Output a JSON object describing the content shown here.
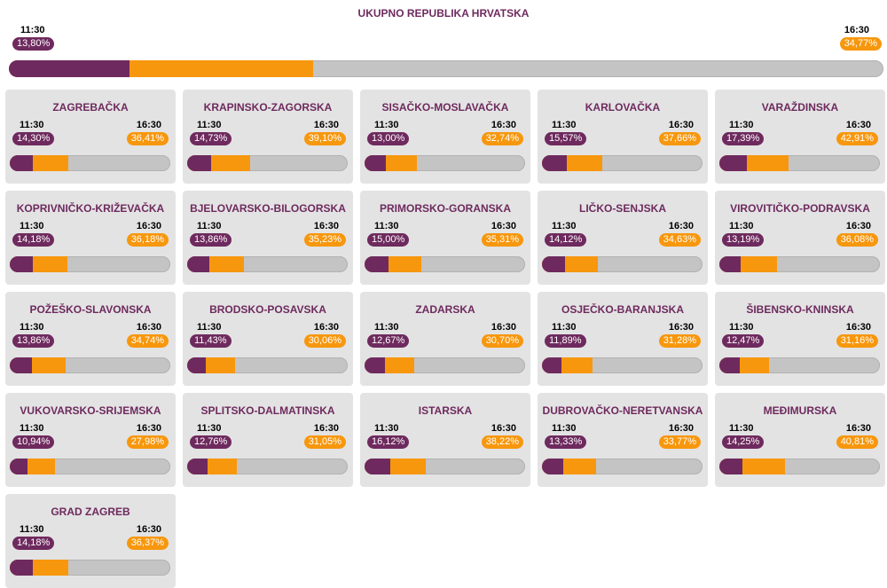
{
  "chart_data": {
    "type": "bar",
    "title": "UKUPNO REPUBLIKA HRVATSKA",
    "times": [
      "11:30",
      "16:30"
    ],
    "ylim": [
      0,
      100
    ],
    "total": {
      "name": "UKUPNO REPUBLIKA HRVATSKA",
      "v1": 13.8,
      "v2": 34.77,
      "v1_label": "13,80%",
      "v2_label": "34,77%"
    },
    "regions": [
      {
        "name": "ZAGREBAČKA",
        "v1": 14.3,
        "v2": 36.41,
        "v1_label": "14,30%",
        "v2_label": "36,41%"
      },
      {
        "name": "KRAPINSKO-ZAGORSKA",
        "v1": 14.73,
        "v2": 39.1,
        "v1_label": "14,73%",
        "v2_label": "39,10%"
      },
      {
        "name": "SISAČKO-MOSLAVAČKA",
        "v1": 13.0,
        "v2": 32.74,
        "v1_label": "13,00%",
        "v2_label": "32,74%"
      },
      {
        "name": "KARLOVAČKA",
        "v1": 15.57,
        "v2": 37.66,
        "v1_label": "15,57%",
        "v2_label": "37,66%"
      },
      {
        "name": "VARAŽDINSKA",
        "v1": 17.39,
        "v2": 42.91,
        "v1_label": "17,39%",
        "v2_label": "42,91%"
      },
      {
        "name": "KOPRIVNIČKO-KRIŽEVAČKA",
        "v1": 14.18,
        "v2": 36.18,
        "v1_label": "14,18%",
        "v2_label": "36,18%"
      },
      {
        "name": "BJELOVARSKO-BILOGORSKA",
        "v1": 13.86,
        "v2": 35.23,
        "v1_label": "13,86%",
        "v2_label": "35,23%"
      },
      {
        "name": "PRIMORSKO-GORANSKA",
        "v1": 15.0,
        "v2": 35.31,
        "v1_label": "15,00%",
        "v2_label": "35,31%"
      },
      {
        "name": "LIČKO-SENJSKA",
        "v1": 14.12,
        "v2": 34.63,
        "v1_label": "14,12%",
        "v2_label": "34,63%"
      },
      {
        "name": "VIROVITIČKO-PODRAVSKA",
        "v1": 13.19,
        "v2": 36.08,
        "v1_label": "13,19%",
        "v2_label": "36,08%"
      },
      {
        "name": "POŽEŠKO-SLAVONSKA",
        "v1": 13.86,
        "v2": 34.74,
        "v1_label": "13,86%",
        "v2_label": "34,74%"
      },
      {
        "name": "BRODSKO-POSAVSKA",
        "v1": 11.43,
        "v2": 30.06,
        "v1_label": "11,43%",
        "v2_label": "30,06%"
      },
      {
        "name": "ZADARSKA",
        "v1": 12.67,
        "v2": 30.7,
        "v1_label": "12,67%",
        "v2_label": "30,70%"
      },
      {
        "name": "OSJEČKO-BARANJSKA",
        "v1": 11.89,
        "v2": 31.28,
        "v1_label": "11,89%",
        "v2_label": "31,28%"
      },
      {
        "name": "ŠIBENSKO-KNINSKA",
        "v1": 12.47,
        "v2": 31.16,
        "v1_label": "12,47%",
        "v2_label": "31,16%"
      },
      {
        "name": "VUKOVARSKO-SRIJEMSKA",
        "v1": 10.94,
        "v2": 27.98,
        "v1_label": "10,94%",
        "v2_label": "27,98%"
      },
      {
        "name": "SPLITSKO-DALMATINSKA",
        "v1": 12.76,
        "v2": 31.05,
        "v1_label": "12,76%",
        "v2_label": "31,05%"
      },
      {
        "name": "ISTARSKA",
        "v1": 16.12,
        "v2": 38.22,
        "v1_label": "16,12%",
        "v2_label": "38,22%"
      },
      {
        "name": "DUBROVAČKO-NERETVANSKA",
        "v1": 13.33,
        "v2": 33.77,
        "v1_label": "13,33%",
        "v2_label": "33,77%"
      },
      {
        "name": "MEĐIMURSKA",
        "v1": 14.25,
        "v2": 40.81,
        "v1_label": "14,25%",
        "v2_label": "40,81%"
      },
      {
        "name": "GRAD ZAGREB",
        "v1": 14.18,
        "v2": 36.37,
        "v1_label": "14,18%",
        "v2_label": "36,37%"
      }
    ],
    "colors": {
      "first": "#6e2a5e",
      "second": "#f7970d",
      "rest": "#c4c4c4",
      "card": "#e3e3e3"
    }
  }
}
